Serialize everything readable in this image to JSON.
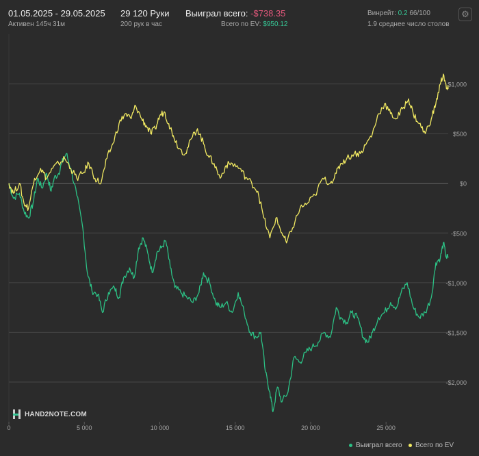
{
  "header": {
    "date_range": "01.05.2025 - 29.05.2025",
    "active_time": "Активен 145ч 31м",
    "hands": "29 120 Руки",
    "hands_per_hour": "200 рук в час",
    "won_total_label": "Выиграл всего:",
    "won_total_value": "-$738.35",
    "ev_total_label": "Всего по EV:",
    "ev_total_value": "$950.12",
    "winrate_label": "Винрейт:",
    "winrate_value": "0.2",
    "winrate_extra": "66/100",
    "avg_tables": "1.9 среднее число столов",
    "settings_icon": "gear-icon"
  },
  "logo": {
    "text": "HAND2NOTE.COM"
  },
  "chart_data": {
    "type": "line",
    "xlim": [
      0,
      29120
    ],
    "ylim": [
      -2400,
      1500
    ],
    "x_ticks": [
      0,
      5000,
      10000,
      15000,
      20000,
      25000
    ],
    "x_tick_labels": [
      "0",
      "5 000",
      "10 000",
      "15 000",
      "20 000",
      "25 000"
    ],
    "y_ticks": [
      1000,
      500,
      0,
      -500,
      -1000,
      -1500,
      -2000
    ],
    "y_tick_labels": [
      "$1,000",
      "$500",
      "$0",
      "-$500",
      "-$1,000",
      "-$1,500",
      "-$2,000"
    ],
    "grid": true,
    "legend_position": "bottom-right",
    "series": [
      {
        "name": "Выиграл всего",
        "color": "#2cc185",
        "points": [
          [
            0,
            0
          ],
          [
            300,
            -150
          ],
          [
            700,
            -100
          ],
          [
            1000,
            -280
          ],
          [
            1300,
            -350
          ],
          [
            1600,
            -200
          ],
          [
            1900,
            50
          ],
          [
            2200,
            -50
          ],
          [
            2500,
            100
          ],
          [
            2800,
            -80
          ],
          [
            3000,
            50
          ],
          [
            3300,
            100
          ],
          [
            3500,
            200
          ],
          [
            3800,
            300
          ],
          [
            4100,
            150
          ],
          [
            4500,
            -120
          ],
          [
            4900,
            -450
          ],
          [
            5200,
            -900
          ],
          [
            5500,
            -1080
          ],
          [
            5900,
            -1120
          ],
          [
            6200,
            -1300
          ],
          [
            6600,
            -1100
          ],
          [
            7000,
            -1050
          ],
          [
            7300,
            -1150
          ],
          [
            7600,
            -950
          ],
          [
            8000,
            -850
          ],
          [
            8300,
            -950
          ],
          [
            8600,
            -650
          ],
          [
            8900,
            -550
          ],
          [
            9200,
            -700
          ],
          [
            9500,
            -900
          ],
          [
            9800,
            -700
          ],
          [
            10100,
            -650
          ],
          [
            10400,
            -580
          ],
          [
            10700,
            -850
          ],
          [
            11000,
            -1050
          ],
          [
            11400,
            -1100
          ],
          [
            11800,
            -1150
          ],
          [
            12200,
            -1200
          ],
          [
            12600,
            -1100
          ],
          [
            12900,
            -900
          ],
          [
            13300,
            -1000
          ],
          [
            13700,
            -1200
          ],
          [
            14000,
            -1250
          ],
          [
            14400,
            -1200
          ],
          [
            14800,
            -1300
          ],
          [
            15200,
            -1100
          ],
          [
            15600,
            -1300
          ],
          [
            16000,
            -1500
          ],
          [
            16400,
            -1550
          ],
          [
            16700,
            -1500
          ],
          [
            17000,
            -1900
          ],
          [
            17300,
            -2100
          ],
          [
            17500,
            -2300
          ],
          [
            17800,
            -2050
          ],
          [
            18100,
            -2200
          ],
          [
            18500,
            -2100
          ],
          [
            18900,
            -1750
          ],
          [
            19300,
            -1800
          ],
          [
            19700,
            -1700
          ],
          [
            20100,
            -1650
          ],
          [
            20500,
            -1600
          ],
          [
            20900,
            -1500
          ],
          [
            21300,
            -1550
          ],
          [
            21700,
            -1250
          ],
          [
            22000,
            -1350
          ],
          [
            22400,
            -1400
          ],
          [
            22700,
            -1300
          ],
          [
            23100,
            -1350
          ],
          [
            23500,
            -1550
          ],
          [
            23800,
            -1600
          ],
          [
            24100,
            -1500
          ],
          [
            24500,
            -1350
          ],
          [
            24900,
            -1300
          ],
          [
            25300,
            -1200
          ],
          [
            25700,
            -1250
          ],
          [
            26000,
            -1100
          ],
          [
            26400,
            -1000
          ],
          [
            26800,
            -1250
          ],
          [
            27200,
            -1350
          ],
          [
            27600,
            -1300
          ],
          [
            28000,
            -1150
          ],
          [
            28300,
            -800
          ],
          [
            28600,
            -750
          ],
          [
            28800,
            -600
          ],
          [
            29000,
            -750
          ],
          [
            29120,
            -738.35
          ]
        ]
      },
      {
        "name": "Всего по EV",
        "color": "#f2ea62",
        "points": [
          [
            0,
            0
          ],
          [
            300,
            -100
          ],
          [
            700,
            0
          ],
          [
            1000,
            -200
          ],
          [
            1300,
            -250
          ],
          [
            1700,
            50
          ],
          [
            2100,
            150
          ],
          [
            2500,
            50
          ],
          [
            2900,
            150
          ],
          [
            3300,
            200
          ],
          [
            3700,
            250
          ],
          [
            4100,
            150
          ],
          [
            4500,
            50
          ],
          [
            4900,
            100
          ],
          [
            5300,
            200
          ],
          [
            5700,
            50
          ],
          [
            6100,
            0
          ],
          [
            6500,
            250
          ],
          [
            6900,
            400
          ],
          [
            7300,
            600
          ],
          [
            7700,
            700
          ],
          [
            8100,
            650
          ],
          [
            8400,
            780
          ],
          [
            8800,
            650
          ],
          [
            9100,
            580
          ],
          [
            9400,
            500
          ],
          [
            9700,
            550
          ],
          [
            10000,
            680
          ],
          [
            10300,
            720
          ],
          [
            10600,
            600
          ],
          [
            10900,
            480
          ],
          [
            11300,
            350
          ],
          [
            11700,
            300
          ],
          [
            12100,
            450
          ],
          [
            12500,
            550
          ],
          [
            12900,
            400
          ],
          [
            13200,
            280
          ],
          [
            13600,
            200
          ],
          [
            14000,
            50
          ],
          [
            14400,
            180
          ],
          [
            14800,
            200
          ],
          [
            15300,
            150
          ],
          [
            15700,
            60
          ],
          [
            16100,
            0
          ],
          [
            16500,
            -80
          ],
          [
            16900,
            -350
          ],
          [
            17300,
            -550
          ],
          [
            17700,
            -350
          ],
          [
            18100,
            -500
          ],
          [
            18400,
            -600
          ],
          [
            18800,
            -450
          ],
          [
            19300,
            -250
          ],
          [
            19800,
            -200
          ],
          [
            20300,
            -120
          ],
          [
            20800,
            50
          ],
          [
            21300,
            0
          ],
          [
            21700,
            100
          ],
          [
            22000,
            200
          ],
          [
            22400,
            250
          ],
          [
            22900,
            300
          ],
          [
            23300,
            300
          ],
          [
            23700,
            400
          ],
          [
            24100,
            500
          ],
          [
            24500,
            700
          ],
          [
            24900,
            800
          ],
          [
            25300,
            700
          ],
          [
            25700,
            650
          ],
          [
            26100,
            750
          ],
          [
            26500,
            850
          ],
          [
            26800,
            700
          ],
          [
            27200,
            600
          ],
          [
            27600,
            500
          ],
          [
            28000,
            650
          ],
          [
            28300,
            800
          ],
          [
            28600,
            1000
          ],
          [
            28800,
            1100
          ],
          [
            29000,
            950
          ],
          [
            29120,
            950.12
          ]
        ]
      }
    ]
  }
}
